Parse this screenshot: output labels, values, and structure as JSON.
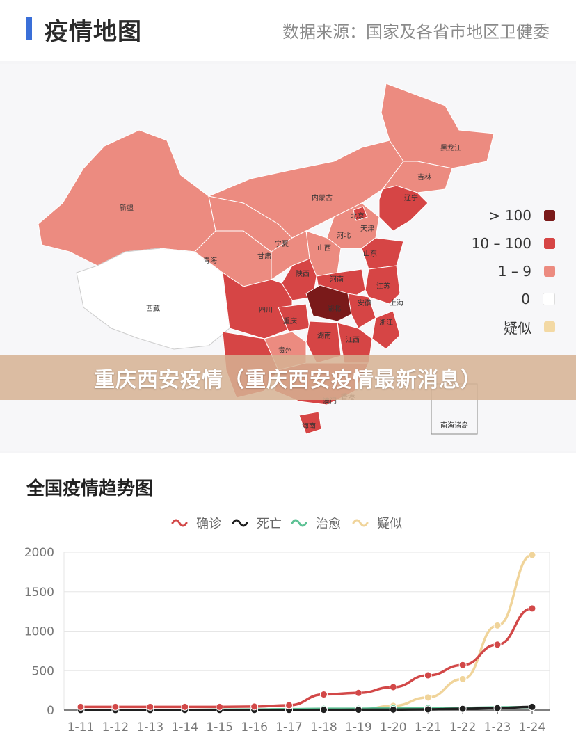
{
  "header": {
    "title": "疫情地图",
    "source": "数据来源：国家及各省市地区卫健委"
  },
  "map": {
    "legend": [
      {
        "label": "> 100",
        "color": "#7a1a1a"
      },
      {
        "label": "10 – 100",
        "color": "#d64545"
      },
      {
        "label": "1 – 9",
        "color": "#ec8b80"
      },
      {
        "label": "0",
        "color": "#ffffff"
      },
      {
        "label": "疑似",
        "color": "#f3d9a4"
      }
    ],
    "province_labels": [
      "黑龙江",
      "吉林",
      "辽宁",
      "内蒙古",
      "北京",
      "天津",
      "新疆",
      "宁夏",
      "山西",
      "河北",
      "青海",
      "甘肃",
      "山东",
      "陕西",
      "河南",
      "江苏",
      "西藏",
      "四川",
      "湖北",
      "安徽",
      "上海",
      "重庆",
      "浙江",
      "湖南",
      "江西",
      "贵州",
      "澳门",
      "香港",
      "海南"
    ],
    "inset_label": "南海诸岛"
  },
  "banner": {
    "text": "重庆西安疫情（重庆西安疫情最新消息）"
  },
  "chart_data": {
    "type": "line",
    "title": "全国疫情趋势图",
    "categories": [
      "1-11",
      "1-12",
      "1-13",
      "1-14",
      "1-15",
      "1-16",
      "1-17",
      "1-18",
      "1-19",
      "1-20",
      "1-21",
      "1-22",
      "1-23",
      "1-24"
    ],
    "ylim": [
      0,
      2000
    ],
    "yticks": [
      0,
      500,
      1000,
      1500,
      2000
    ],
    "grid": true,
    "legend_position": "top-center",
    "series": [
      {
        "name": "确诊",
        "color": "#d24848",
        "values": [
          41,
          41,
          41,
          41,
          41,
          45,
          62,
          198,
          218,
          291,
          440,
          571,
          830,
          1287
        ]
      },
      {
        "name": "死亡",
        "color": "#1f1f1f",
        "values": [
          1,
          1,
          1,
          2,
          2,
          2,
          2,
          3,
          4,
          6,
          9,
          17,
          25,
          41
        ]
      },
      {
        "name": "治愈",
        "color": "#5ec295",
        "values": [
          2,
          2,
          2,
          2,
          5,
          8,
          12,
          17,
          17,
          25,
          25,
          28,
          34,
          38
        ]
      },
      {
        "name": "疑似",
        "color": "#f0d49a",
        "start_index": 8,
        "values": [
          null,
          null,
          null,
          null,
          null,
          null,
          null,
          null,
          0,
          54,
          160,
          393,
          1072,
          1965
        ]
      }
    ]
  }
}
